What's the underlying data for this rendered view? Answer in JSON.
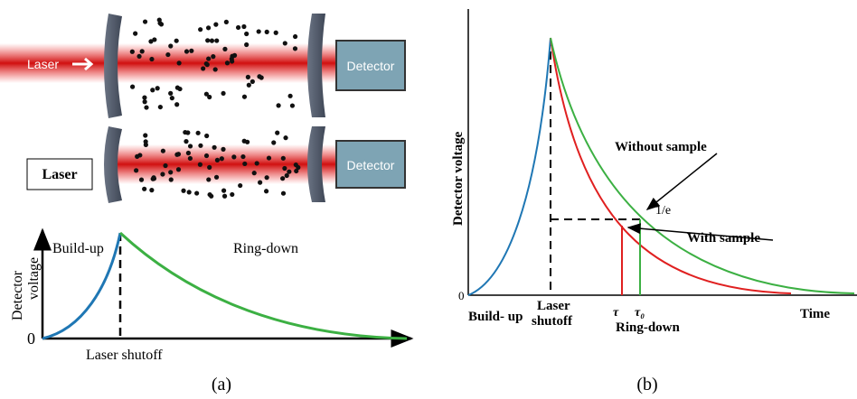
{
  "panel_a": {
    "cavity_top": {
      "laser": "Laser",
      "detector": "Detector"
    },
    "cavity_bottom": {
      "laser": "Laser",
      "detector": "Detector"
    },
    "plot": {
      "y_label_lines": [
        "Detector",
        "voltage"
      ],
      "zero": "0",
      "build_up": "Build-up",
      "ring_down": "Ring-down",
      "x_label": "Laser shutoff"
    },
    "caption": "(a)"
  },
  "panel_b": {
    "y_label": "Detector voltage",
    "zero": "0",
    "without_sample": "Without sample",
    "one_over_e": "1/e",
    "with_sample": "With sample",
    "build_up": "Build- up",
    "shutoff_lines": [
      "Laser",
      "shutoff"
    ],
    "tau": "τ",
    "tau0": "τ₀",
    "ring_down": "Ring-down",
    "time": "Time",
    "caption": "(b)"
  }
}
